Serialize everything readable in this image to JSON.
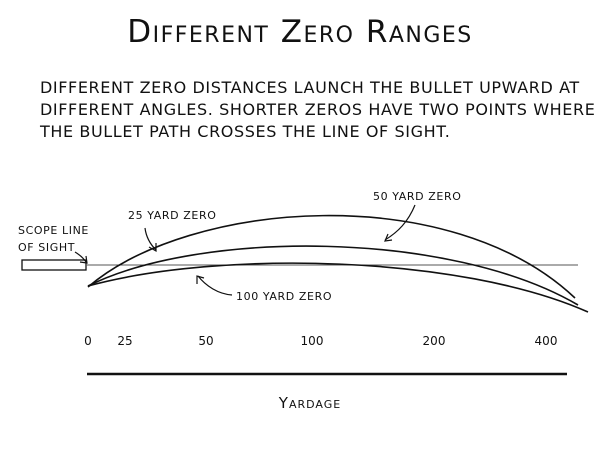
{
  "title": "Different Zero Ranges",
  "description": [
    "Different zero distances launch the bullet upward at",
    "different angles. Shorter zeros have two points where",
    "the bullet path crosses the line of sight."
  ],
  "scope_label": [
    "Scope line",
    "of sight"
  ],
  "trajectories": [
    {
      "label": "25 yard zero"
    },
    {
      "label": "50 yard zero"
    },
    {
      "label": "100 yard zero"
    }
  ],
  "x_ticks": [
    "0",
    "25",
    "50",
    "100",
    "200",
    "400"
  ],
  "x_axis_label": "Yardage"
}
